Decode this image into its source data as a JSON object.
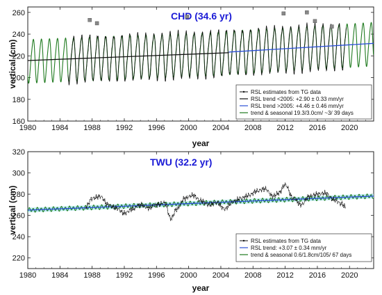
{
  "chart_data": [
    {
      "type": "line",
      "title": "CHD (34.6 yr)",
      "xlabel": "year",
      "ylabel": "vertical (cm)",
      "xlim": [
        1980,
        2023
      ],
      "ylim": [
        160,
        265
      ],
      "xticks": [
        "1980",
        "1984",
        "1988",
        "1992",
        "1996",
        "2000",
        "2004",
        "2008",
        "2012",
        "2016",
        "2020"
      ],
      "yticks": [
        "160",
        "180",
        "200",
        "220",
        "240",
        "260"
      ],
      "legend_position": "bottom-right",
      "grid": false,
      "series": [
        {
          "name": "RSL estimates from TG data",
          "color": "#111111",
          "style": "dots-with-line",
          "start": 1985.0,
          "end": 2019.6,
          "approx_annual_range_cm": [
            199,
            243
          ]
        },
        {
          "name": "RSL trend <2005: +2.90 ± 0.33 mm/yr",
          "color": "#111111",
          "x": [
            1980,
            2005
          ],
          "y": [
            215.7,
            222.9
          ]
        },
        {
          "name": "RSL trend >2005: +4.46 ± 0.46 mm/yr",
          "color": "#2a4fd6",
          "x": [
            2005,
            2023
          ],
          "y": [
            223.5,
            231.5
          ]
        },
        {
          "name": "trend & seasonal 19.3/3.0cm/ ~3/ 39 days",
          "color": "#1f7a1f",
          "amplitude_annual_cm": 19.3,
          "amplitude_semiannual_cm": 3.0
        }
      ],
      "outliers": [
        {
          "x": 1987.7,
          "y": 253
        },
        {
          "x": 1988.6,
          "y": 250
        },
        {
          "x": 1999.8,
          "y": 256
        },
        {
          "x": 2011.8,
          "y": 259
        },
        {
          "x": 2014.7,
          "y": 260
        },
        {
          "x": 2015.7,
          "y": 252
        },
        {
          "x": 2017.8,
          "y": 247
        }
      ]
    },
    {
      "type": "line",
      "title": "TWU (32.2 yr)",
      "xlabel": "year",
      "ylabel": "vertical (cm)",
      "xlim": [
        1980,
        2023
      ],
      "ylim": [
        210,
        320
      ],
      "xticks": [
        "1980",
        "1984",
        "1988",
        "1992",
        "1996",
        "2000",
        "2004",
        "2008",
        "2012",
        "2016",
        "2020"
      ],
      "yticks": [
        "220",
        "240",
        "260",
        "280",
        "300",
        "320"
      ],
      "legend_position": "bottom-right",
      "grid": false,
      "series": [
        {
          "name": "RSL estimates from TG data",
          "color": "#111111",
          "style": "dots-with-line",
          "x": [
            1987.2,
            1988.0,
            1989.0,
            1990.0,
            1991.0,
            1992.0,
            1993.0,
            1994.0,
            1995.0,
            1996.0,
            1997.0,
            1997.8,
            1998.5,
            1999.5,
            2000.5,
            2001.5,
            2002.5,
            2003.5,
            2004.5,
            2005.5,
            2006.5,
            2007.5,
            2008.5,
            2009.5,
            2010.5,
            2011.2,
            2012.0,
            2013.0,
            2014.0,
            2015.0,
            2016.0,
            2017.0,
            2018.0,
            2019.0,
            2019.5
          ],
          "y": [
            268,
            276,
            278,
            270,
            267,
            262,
            266,
            270,
            267,
            270,
            272,
            257,
            266,
            276,
            279,
            274,
            270,
            272,
            266,
            273,
            276,
            279,
            283,
            285,
            278,
            281,
            289,
            276,
            270,
            278,
            280,
            281,
            275,
            271,
            268
          ]
        },
        {
          "name": "RSL trend: +3.07 ± 0.34 mm/yr",
          "color": "#2a4fd6",
          "x": [
            1980,
            2023
          ],
          "y": [
            265.0,
            278.2
          ]
        },
        {
          "name": "trend & seasonal 0.6/1.8cm/105/ 67 days",
          "color": "#1f7a1f",
          "amplitude_annual_cm": 0.6,
          "amplitude_semiannual_cm": 1.8
        }
      ],
      "band_color": "#aee6f0"
    }
  ]
}
